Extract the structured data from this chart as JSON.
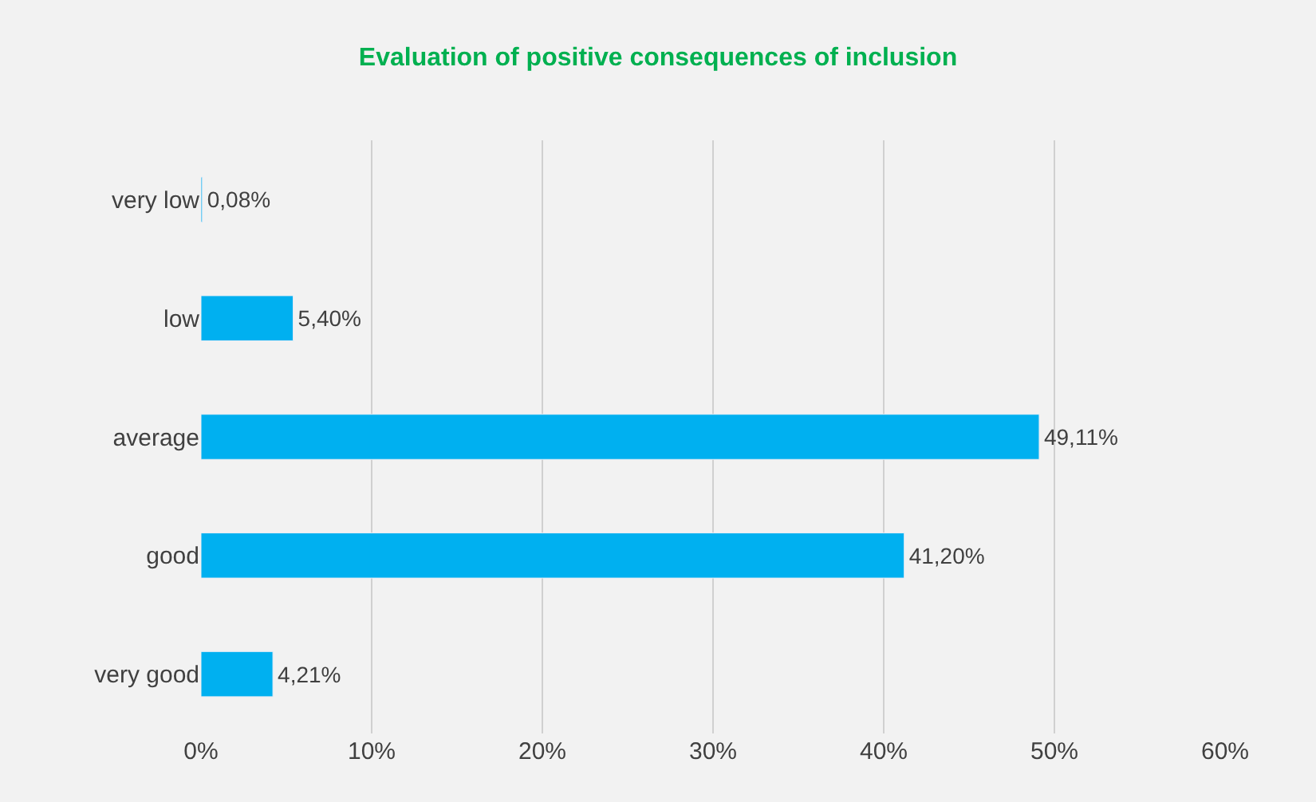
{
  "chart_data": {
    "type": "bar",
    "orientation": "horizontal",
    "title": "Evaluation of positive consequences of inclusion",
    "categories": [
      "very low",
      "low",
      "average",
      "good",
      "very good"
    ],
    "values": [
      0.08,
      5.4,
      49.11,
      41.2,
      4.21
    ],
    "value_labels": [
      "0,08%",
      "5,40%",
      "49,11%",
      "41,20%",
      "4,21%"
    ],
    "color": "#00b0f0",
    "xlim": [
      0,
      60
    ],
    "xticks": [
      {
        "value": 0,
        "label": "0%"
      },
      {
        "value": 10,
        "label": "10%"
      },
      {
        "value": 20,
        "label": "20%"
      },
      {
        "value": 30,
        "label": "30%"
      },
      {
        "value": 40,
        "label": "40%"
      },
      {
        "value": 50,
        "label": "50%"
      },
      {
        "value": 60,
        "label": "60%"
      }
    ],
    "grid": "x",
    "legend": false
  }
}
